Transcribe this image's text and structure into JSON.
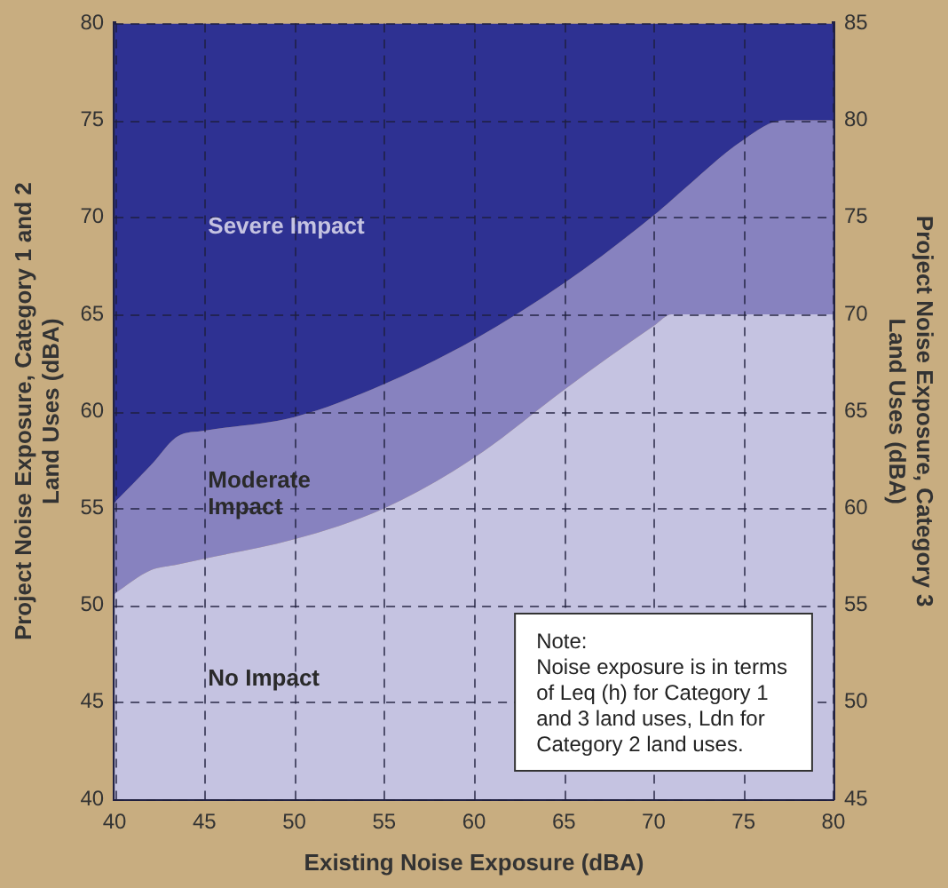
{
  "chart_data": {
    "type": "area",
    "xlabel": "Existing Noise Exposure (dBA)",
    "ylabel": "Project Noise Exposure, Category 1 and 2\nLand Uses (dBA)",
    "y2label": "Project Noise Exposure, Category 3\nLand Uses (dBA)",
    "x": [
      40,
      42,
      43.5,
      45,
      50,
      55,
      60,
      65,
      70,
      71,
      75,
      77.2,
      80
    ],
    "series": [
      {
        "name": "No Impact",
        "color": "#c5c3e1",
        "values": [
          50.6,
          51.8,
          52.1,
          52.4,
          53.4,
          55.0,
          57.6,
          61.1,
          64.4,
          65,
          65,
          65,
          65
        ]
      },
      {
        "name": "Moderate Impact",
        "color": "#8782bf",
        "values": [
          55.3,
          57.2,
          58.7,
          59.0,
          59.7,
          61.4,
          63.7,
          66.6,
          70.1,
          70.9,
          74.0,
          75,
          75
        ]
      },
      {
        "name": "Severe Impact",
        "color": "#2e3192",
        "values": [
          80,
          80,
          80,
          80,
          80,
          80,
          80,
          80,
          80,
          80,
          80,
          80,
          80
        ]
      }
    ],
    "xlim": [
      40,
      80
    ],
    "xticks": [
      40,
      45,
      50,
      55,
      60,
      65,
      70,
      75,
      80
    ],
    "ylim": [
      40,
      80
    ],
    "yticks": [
      40,
      45,
      50,
      55,
      60,
      65,
      70,
      75,
      80
    ],
    "y2lim": [
      45,
      85
    ],
    "y2ticks": [
      45,
      50,
      55,
      60,
      65,
      70,
      75,
      80,
      85
    ],
    "grid": true,
    "legend": false,
    "annotations": [
      "Note:\nNoise exposure is in terms\nof Leq (h) for Category 1\nand 3 land uses, Ldn for\nCategory 2 land uses."
    ]
  }
}
